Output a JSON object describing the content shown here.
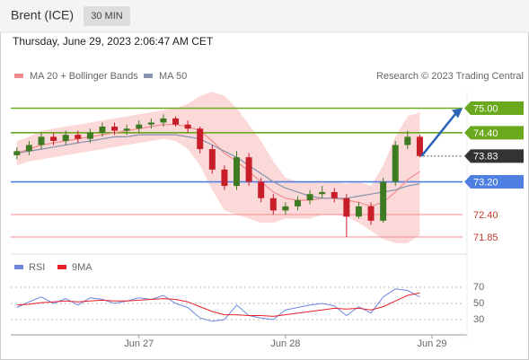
{
  "header": {
    "title": "Brent (ICE)",
    "timeframe": "30 MIN",
    "timestamp": "Thursday, June 29, 2023 2:06:47 AM CET",
    "source": "Research © 2023 Trading Central"
  },
  "chart_data": [
    {
      "type": "candlestick",
      "x": [
        -20,
        -18,
        -16,
        -14,
        -12,
        -10,
        -8,
        -6,
        -4,
        -2,
        0,
        2,
        4,
        6,
        8,
        10,
        12,
        14,
        16,
        18,
        20,
        22,
        24,
        26,
        28,
        30,
        32,
        34,
        36,
        38,
        40,
        42,
        44,
        46
      ],
      "open": [
        73.85,
        73.95,
        74.1,
        74.3,
        74.2,
        74.35,
        74.25,
        74.4,
        74.55,
        74.45,
        74.5,
        74.6,
        74.65,
        74.75,
        74.6,
        74.5,
        74.0,
        73.5,
        73.1,
        73.8,
        73.2,
        72.8,
        72.5,
        72.6,
        72.75,
        72.9,
        72.95,
        72.8,
        72.35,
        72.6,
        72.25,
        73.2,
        74.1,
        74.3
      ],
      "high": [
        74.05,
        74.2,
        74.4,
        74.4,
        74.45,
        74.45,
        74.5,
        74.65,
        74.65,
        74.6,
        74.7,
        74.75,
        74.85,
        74.8,
        74.7,
        74.55,
        74.1,
        73.6,
        73.95,
        73.9,
        73.3,
        72.9,
        72.7,
        72.85,
        73.0,
        73.1,
        73.05,
        72.9,
        72.7,
        72.7,
        73.3,
        74.2,
        74.45,
        74.35
      ],
      "low": [
        73.75,
        73.85,
        74.0,
        74.1,
        74.1,
        74.15,
        74.15,
        74.3,
        74.35,
        74.35,
        74.4,
        74.5,
        74.55,
        74.55,
        74.4,
        73.9,
        73.4,
        73.0,
        73.0,
        73.1,
        72.7,
        72.4,
        72.4,
        72.5,
        72.65,
        72.8,
        72.7,
        71.85,
        72.3,
        72.15,
        72.2,
        73.1,
        74.0,
        73.8
      ],
      "close": [
        73.95,
        74.1,
        74.3,
        74.2,
        74.35,
        74.25,
        74.4,
        74.55,
        74.45,
        74.5,
        74.6,
        74.65,
        74.75,
        74.6,
        74.5,
        74.0,
        73.5,
        73.1,
        73.8,
        73.2,
        72.8,
        72.5,
        72.6,
        72.75,
        72.9,
        72.95,
        72.8,
        72.35,
        72.6,
        72.25,
        73.2,
        74.1,
        74.3,
        73.83
      ],
      "up_color": "#3d7a22",
      "down_color": "#c81e2a",
      "series": [
        {
          "name": "MA 20 + Bollinger Bands",
          "color": "#f28b8b",
          "band_color": "#fcd9d9",
          "values": [
            73.9,
            74.0,
            74.1,
            74.15,
            74.2,
            74.25,
            74.3,
            74.35,
            74.4,
            74.45,
            74.5,
            74.55,
            74.6,
            74.6,
            74.55,
            74.45,
            74.2,
            73.9,
            73.7,
            73.45,
            73.2,
            72.95,
            72.8,
            72.75,
            72.75,
            72.8,
            72.8,
            72.75,
            72.7,
            72.6,
            72.7,
            72.95,
            73.25,
            73.45
          ],
          "upper": [
            74.2,
            74.3,
            74.45,
            74.5,
            74.55,
            74.6,
            74.65,
            74.7,
            74.75,
            74.8,
            74.85,
            74.9,
            74.95,
            75.0,
            75.1,
            75.3,
            75.4,
            75.3,
            75.0,
            74.6,
            74.2,
            73.7,
            73.3,
            73.2,
            73.2,
            73.2,
            73.2,
            73.15,
            73.2,
            73.1,
            73.6,
            74.3,
            74.8,
            74.9
          ],
          "lower": [
            73.6,
            73.7,
            73.75,
            73.8,
            73.85,
            73.9,
            73.95,
            74.0,
            74.05,
            74.1,
            74.15,
            74.2,
            74.25,
            74.2,
            74.0,
            73.6,
            73.0,
            72.5,
            72.4,
            72.3,
            72.2,
            72.2,
            72.3,
            72.3,
            72.3,
            72.4,
            72.4,
            72.35,
            72.2,
            72.0,
            71.8,
            71.7,
            71.7,
            71.9
          ]
        },
        {
          "name": "MA 50",
          "color": "#8793ad",
          "values": [
            73.9,
            73.95,
            74.0,
            74.05,
            74.1,
            74.15,
            74.2,
            74.25,
            74.3,
            74.3,
            74.35,
            74.35,
            74.35,
            74.35,
            74.3,
            74.25,
            74.1,
            73.95,
            73.8,
            73.6,
            73.4,
            73.2,
            73.05,
            72.95,
            72.85,
            72.8,
            72.8,
            72.8,
            72.85,
            72.9,
            72.95,
            73.0,
            73.1,
            73.15
          ]
        }
      ],
      "levels": {
        "values": [
          75,
          74.4,
          73.83,
          73.2,
          72.4,
          71.85
        ],
        "value_labels": [
          "75.00",
          "74.40",
          "73.83",
          "73.20",
          "72.40",
          "71.85"
        ],
        "colors": [
          "#6aa81e",
          "#6aa81e",
          "#333333",
          "#4f7fe0",
          "#f08c8c",
          "#f08c8c"
        ],
        "boxed": [
          true,
          true,
          true,
          true,
          false,
          false
        ]
      },
      "xlim": [
        -21,
        53
      ],
      "ylim": [
        71.5,
        75.45
      ],
      "xticks": [
        {
          "value": 0,
          "label": "Jun 27"
        },
        {
          "value": 24,
          "label": "Jun 28"
        },
        {
          "value": 48,
          "label": "Jun 29"
        }
      ]
    },
    {
      "type": "line",
      "x": [
        -20,
        -18,
        -16,
        -14,
        -12,
        -10,
        -8,
        -6,
        -4,
        -2,
        0,
        2,
        4,
        6,
        8,
        10,
        12,
        14,
        16,
        18,
        20,
        22,
        24,
        26,
        28,
        30,
        32,
        34,
        36,
        38,
        40,
        42,
        44,
        46
      ],
      "series": [
        {
          "name": "RSI",
          "color": "#6f86e0",
          "values": [
            45,
            52,
            58,
            50,
            56,
            48,
            57,
            55,
            50,
            53,
            57,
            55,
            60,
            50,
            45,
            32,
            28,
            30,
            48,
            35,
            32,
            30,
            42,
            45,
            48,
            50,
            47,
            35,
            46,
            38,
            58,
            68,
            66,
            58
          ]
        },
        {
          "name": "9MA",
          "color": "#e8202a",
          "values": [
            48,
            49,
            51,
            52,
            53,
            52,
            53,
            54,
            53,
            53,
            54,
            55,
            56,
            55,
            52,
            46,
            40,
            36,
            36,
            35,
            35,
            34,
            36,
            38,
            40,
            42,
            44,
            43,
            44,
            42,
            46,
            53,
            60,
            63
          ]
        }
      ],
      "xlim": [
        -21,
        53
      ],
      "ylim": [
        10,
        90
      ],
      "yticks": [
        30,
        50,
        70
      ]
    }
  ]
}
